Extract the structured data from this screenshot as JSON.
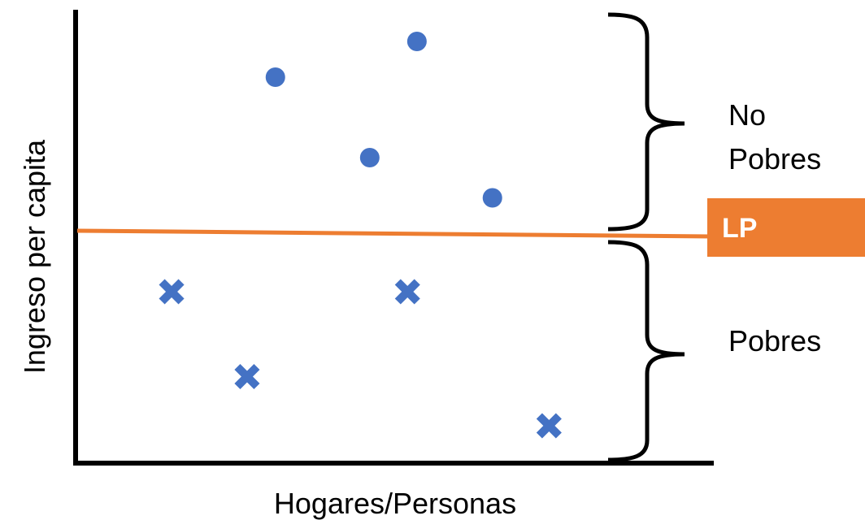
{
  "axes": {
    "x_label": "Hogares/Personas",
    "y_label": "Ingreso per capita"
  },
  "poverty_line": {
    "label": "LP",
    "color": "#ED7D31"
  },
  "regions": {
    "upper_label_line1": "No",
    "upper_label_line2": "Pobres",
    "lower_label": "Pobres"
  },
  "marker_color": "#4472C4",
  "chart_data": {
    "type": "scatter",
    "xlabel": "Hogares/Personas",
    "ylabel": "Ingreso per capita",
    "series": [
      {
        "marker": "circle",
        "points": [
          [
            2.1,
            8.6
          ],
          [
            3.6,
            9.4
          ],
          [
            3.1,
            6.8
          ],
          [
            4.4,
            5.9
          ]
        ]
      },
      {
        "marker": "cross",
        "points": [
          [
            1.0,
            3.8
          ],
          [
            1.8,
            1.9
          ],
          [
            3.5,
            3.8
          ],
          [
            5.0,
            0.8
          ]
        ]
      }
    ],
    "threshold": {
      "label": "LP",
      "y": 4.8
    }
  }
}
